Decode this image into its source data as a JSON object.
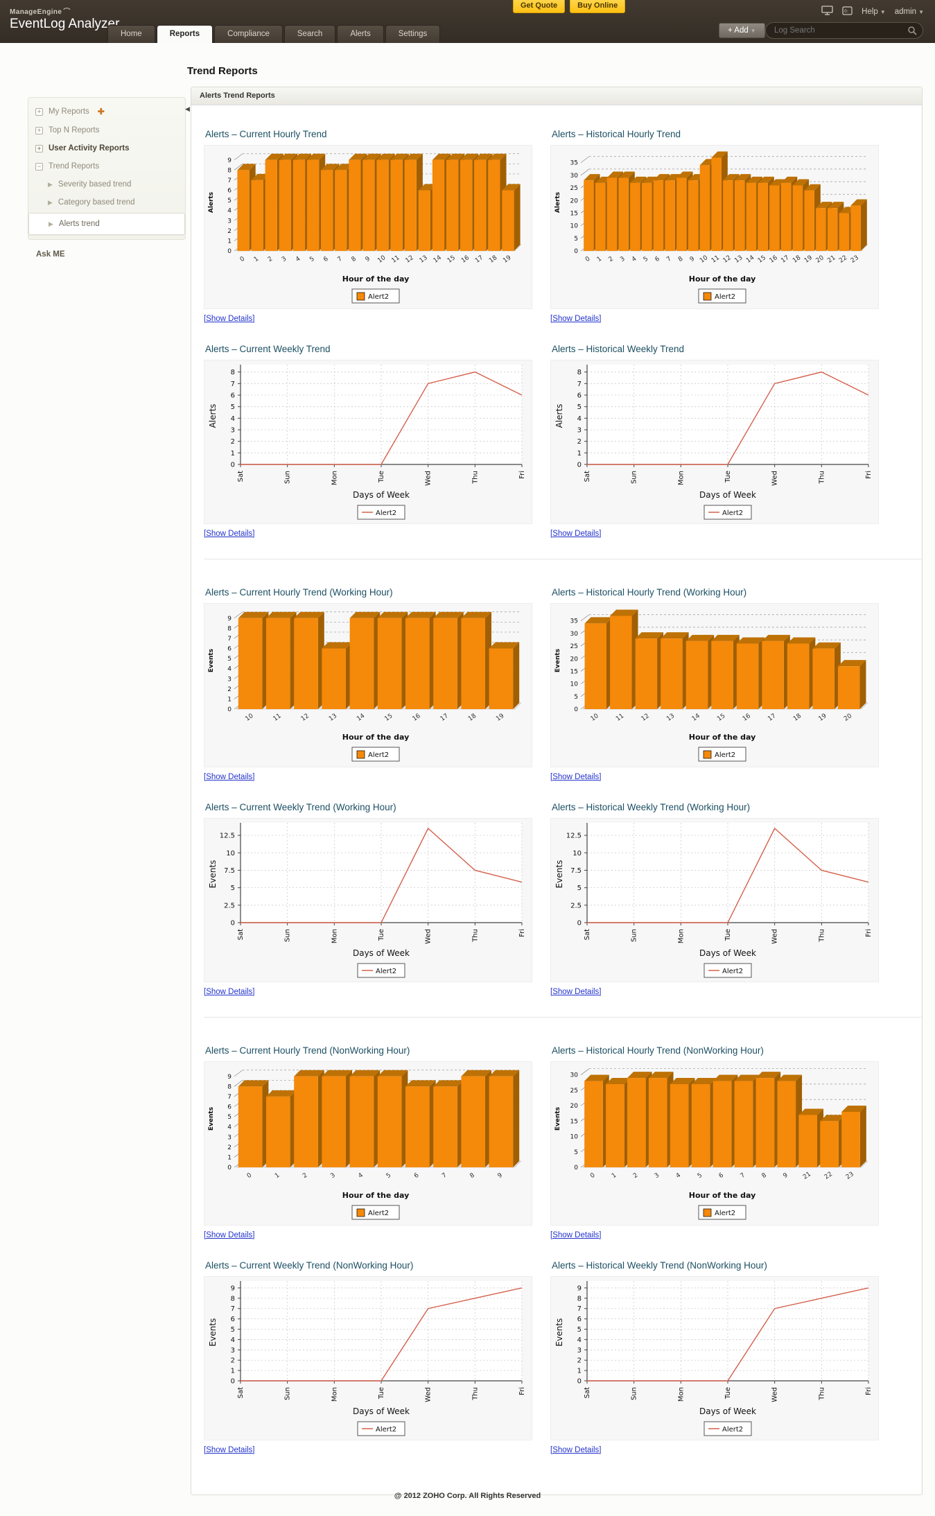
{
  "header": {
    "brand_small": "ManageEngine",
    "brand_large": "EventLog Analyzer",
    "get_quote": "Get Quote",
    "buy_online": "Buy Online",
    "help_label": "Help",
    "user_label": "admin",
    "add_label": "+ Add",
    "search_placeholder": "Log Search",
    "tabs": [
      {
        "label": "Home"
      },
      {
        "label": "Reports"
      },
      {
        "label": "Compliance"
      },
      {
        "label": "Search"
      },
      {
        "label": "Alerts"
      },
      {
        "label": "Settings"
      }
    ]
  },
  "page": {
    "title": "Trend Reports",
    "section_title": "Alerts Trend Reports",
    "show_details": "[Show Details]",
    "footer": "@ 2012 ZOHO Corp. All Rights Reserved"
  },
  "sidebar": {
    "items": [
      {
        "label": "My Reports"
      },
      {
        "label": "Top N Reports"
      },
      {
        "label": "User Activity Reports"
      },
      {
        "label": "Trend Reports"
      },
      {
        "label": "Severity based trend"
      },
      {
        "label": "Category based trend"
      },
      {
        "label": "Alerts trend"
      }
    ],
    "ask_me": "Ask ME"
  },
  "colors": {
    "bar_face": "#F5890A",
    "bar_top": "#BE7104",
    "bar_side": "#A05F02",
    "line_series": "#D4604C",
    "floor": "#E0E0E0",
    "grid_bar": "#9A9A9A",
    "grid_line": "#CCCCCC",
    "axis": "#444444",
    "accent_yellow": "#FFC421",
    "link_blue": "#2333CC",
    "header_bg": "#3A322A",
    "title_teal": "#1C4F63"
  },
  "chart_data": [
    {
      "type": "bar",
      "title": "Alerts – Current Hourly Trend",
      "ylabel": "Alerts",
      "xlabel": "Hour of the day",
      "legend": "Alert2",
      "categories": [
        "0",
        "1",
        "2",
        "3",
        "4",
        "5",
        "6",
        "7",
        "8",
        "9",
        "10",
        "11",
        "12",
        "13",
        "14",
        "15",
        "16",
        "17",
        "18",
        "19"
      ],
      "values": [
        8,
        7,
        9,
        9,
        9,
        9,
        8,
        8,
        9,
        9,
        9,
        9,
        9,
        6,
        9,
        9,
        9,
        9,
        9,
        6
      ],
      "yticks": [
        0,
        1,
        2,
        3,
        4,
        5,
        6,
        7,
        8,
        9
      ],
      "ymax": 9.6
    },
    {
      "type": "bar",
      "title": "Alerts – Historical Hourly Trend",
      "ylabel": "Alerts",
      "xlabel": "Hour of the day",
      "legend": "Alert2",
      "categories": [
        "0",
        "1",
        "2",
        "3",
        "4",
        "5",
        "6",
        "7",
        "8",
        "9",
        "10",
        "11",
        "12",
        "13",
        "14",
        "15",
        "16",
        "17",
        "18",
        "19",
        "20",
        "21",
        "22",
        "23"
      ],
      "values": [
        28,
        27,
        29,
        29,
        27,
        27,
        28,
        28,
        29,
        28,
        34,
        37,
        28,
        28,
        27,
        27,
        26,
        27,
        26,
        24,
        17,
        17,
        15,
        18
      ],
      "yticks": [
        0,
        5,
        10,
        15,
        20,
        25,
        30,
        35
      ],
      "ymax": 38.5
    },
    {
      "type": "line",
      "title": "Alerts – Current Weekly Trend",
      "ylabel": "Alerts",
      "xlabel": "Days of Week",
      "legend": "Alert2",
      "categories": [
        "Sat",
        "Sun",
        "Mon",
        "Tue",
        "Wed",
        "Thu",
        "Fri"
      ],
      "values": [
        0,
        0,
        0,
        0,
        7,
        8,
        6
      ],
      "yticks": [
        0,
        1,
        2,
        3,
        4,
        5,
        6,
        7,
        8
      ],
      "ymax": 8.4
    },
    {
      "type": "line",
      "title": "Alerts – Historical Weekly Trend",
      "ylabel": "Alerts",
      "xlabel": "Days of Week",
      "legend": "Alert2",
      "categories": [
        "Sat",
        "Sun",
        "Mon",
        "Tue",
        "Wed",
        "Thu",
        "Fri"
      ],
      "values": [
        0,
        0,
        0,
        0,
        7,
        8,
        6
      ],
      "yticks": [
        0,
        1,
        2,
        3,
        4,
        5,
        6,
        7,
        8
      ],
      "ymax": 8.4
    },
    {
      "type": "bar",
      "title": "Alerts – Current Hourly Trend (Working Hour)",
      "ylabel": "Events",
      "xlabel": "Hour of the day",
      "legend": "Alert2",
      "categories": [
        "10",
        "11",
        "12",
        "13",
        "14",
        "15",
        "16",
        "17",
        "18",
        "19"
      ],
      "values": [
        9,
        9,
        9,
        6,
        9,
        9,
        9,
        9,
        9,
        6
      ],
      "yticks": [
        0,
        1,
        2,
        3,
        4,
        5,
        6,
        7,
        8,
        9
      ],
      "ymax": 9.6
    },
    {
      "type": "bar",
      "title": "Alerts – Historical Hourly Trend (Working Hour)",
      "ylabel": "Events",
      "xlabel": "Hour of the day",
      "legend": "Alert2",
      "categories": [
        "10",
        "11",
        "12",
        "13",
        "14",
        "15",
        "16",
        "17",
        "18",
        "19",
        "20"
      ],
      "values": [
        34,
        37,
        28,
        28,
        27,
        27,
        26,
        27,
        26,
        24,
        17
      ],
      "yticks": [
        0,
        5,
        10,
        15,
        20,
        25,
        30,
        35
      ],
      "ymax": 38.5
    },
    {
      "type": "line",
      "title": "Alerts – Current Weekly Trend (Working Hour)",
      "ylabel": "Events",
      "xlabel": "Days of Week",
      "legend": "Alert2",
      "categories": [
        "Sat",
        "Sun",
        "Mon",
        "Tue",
        "Wed",
        "Thu",
        "Fri"
      ],
      "values": [
        0,
        0,
        0,
        0,
        13.5,
        7.5,
        5.8
      ],
      "yticks": [
        0,
        2.5,
        5,
        7.5,
        10,
        12.5
      ],
      "ymax": 13.9
    },
    {
      "type": "line",
      "title": "Alerts – Historical Weekly Trend (Working Hour)",
      "ylabel": "Events",
      "xlabel": "Days of Week",
      "legend": "Alert2",
      "categories": [
        "Sat",
        "Sun",
        "Mon",
        "Tue",
        "Wed",
        "Thu",
        "Fri"
      ],
      "values": [
        0,
        0,
        0,
        0,
        13.5,
        7.5,
        5.8
      ],
      "yticks": [
        0,
        2.5,
        5,
        7.5,
        10,
        12.5
      ],
      "ymax": 13.9
    },
    {
      "type": "bar",
      "title": "Alerts – Current Hourly Trend (NonWorking Hour)",
      "ylabel": "Events",
      "xlabel": "Hour of the day",
      "legend": "Alert2",
      "categories": [
        "0",
        "1",
        "2",
        "3",
        "4",
        "5",
        "6",
        "7",
        "8",
        "9"
      ],
      "values": [
        8,
        7,
        9,
        9,
        9,
        9,
        8,
        8,
        9,
        9
      ],
      "yticks": [
        0,
        1,
        2,
        3,
        4,
        5,
        6,
        7,
        8,
        9
      ],
      "ymax": 9.6
    },
    {
      "type": "bar",
      "title": "Alerts – Historical Hourly Trend (NonWorking Hour)",
      "ylabel": "Events",
      "xlabel": "Hour of the day",
      "legend": "Alert2",
      "categories": [
        "0",
        "1",
        "2",
        "3",
        "4",
        "5",
        "6",
        "7",
        "8",
        "9",
        "21",
        "22",
        "23"
      ],
      "values": [
        28,
        27,
        29,
        29,
        27,
        27,
        28,
        28,
        29,
        28,
        17,
        15,
        18
      ],
      "yticks": [
        0,
        5,
        10,
        15,
        20,
        25,
        30
      ],
      "ymax": 31.5
    },
    {
      "type": "line",
      "title": "Alerts – Current Weekly Trend (NonWorking Hour)",
      "ylabel": "Events",
      "xlabel": "Days of Week",
      "legend": "Alert2",
      "categories": [
        "Sat",
        "Sun",
        "Mon",
        "Tue",
        "Wed",
        "Thu",
        "Fri"
      ],
      "values": [
        0,
        0,
        0,
        0,
        7,
        8,
        9
      ],
      "yticks": [
        0,
        1,
        2,
        3,
        4,
        5,
        6,
        7,
        8,
        9
      ],
      "ymax": 9.4
    },
    {
      "type": "line",
      "title": "Alerts – Historical Weekly Trend (NonWorking Hour)",
      "ylabel": "Events",
      "xlabel": "Days of Week",
      "legend": "Alert2",
      "categories": [
        "Sat",
        "Sun",
        "Mon",
        "Tue",
        "Wed",
        "Thu",
        "Fri"
      ],
      "values": [
        0,
        0,
        0,
        0,
        7,
        8,
        9
      ],
      "yticks": [
        0,
        1,
        2,
        3,
        4,
        5,
        6,
        7,
        8,
        9
      ],
      "ymax": 9.4
    }
  ]
}
